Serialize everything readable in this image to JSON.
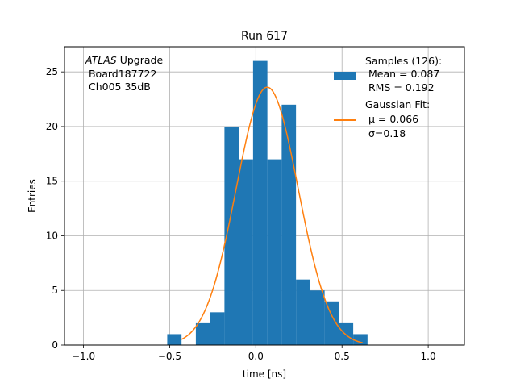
{
  "chart_data": {
    "type": "bar",
    "title": "Run 617",
    "xlabel": "time [ns]",
    "ylabel": "Entries",
    "xlim": [
      -1.11,
      1.21
    ],
    "ylim": [
      0,
      27.3
    ],
    "xticks": [
      -1.0,
      -0.5,
      0.0,
      0.5,
      1.0
    ],
    "xtick_labels": [
      "−1.0",
      "−0.5",
      "0.0",
      "0.5",
      "1.0"
    ],
    "yticks": [
      0,
      5,
      10,
      15,
      20,
      25
    ],
    "ytick_labels": [
      "0",
      "5",
      "10",
      "15",
      "20",
      "25"
    ],
    "grid": true,
    "legend_position": "top-right",
    "bar_color": "#1f77b4",
    "fit_color": "#ff7f0e",
    "annotation": {
      "italic": "ATLAS",
      "line1_rest": " Upgrade",
      "line2": " Board187722",
      "line3": " Ch005 35dB"
    },
    "legend": {
      "hist_lines": [
        "Samples (126):",
        " Mean = 0.087",
        " RMS = 0.192"
      ],
      "fit_title": "Gaussian Fit:",
      "fit_mu_label": " μ = 0.066",
      "fit_sigma_label": " σ=0.18"
    },
    "bins": [
      {
        "x0": -0.514,
        "x1": -0.431,
        "count": 1
      },
      {
        "x0": -0.431,
        "x1": -0.348,
        "count": 0
      },
      {
        "x0": -0.348,
        "x1": -0.265,
        "count": 2
      },
      {
        "x0": -0.265,
        "x1": -0.182,
        "count": 3
      },
      {
        "x0": -0.182,
        "x1": -0.099,
        "count": 20
      },
      {
        "x0": -0.099,
        "x1": -0.016,
        "count": 17
      },
      {
        "x0": -0.016,
        "x1": 0.067,
        "count": 26
      },
      {
        "x0": 0.067,
        "x1": 0.15,
        "count": 17
      },
      {
        "x0": 0.15,
        "x1": 0.233,
        "count": 22
      },
      {
        "x0": 0.233,
        "x1": 0.316,
        "count": 6
      },
      {
        "x0": 0.316,
        "x1": 0.399,
        "count": 5
      },
      {
        "x0": 0.399,
        "x1": 0.482,
        "count": 4
      },
      {
        "x0": 0.482,
        "x1": 0.565,
        "count": 2
      },
      {
        "x0": 0.565,
        "x1": 0.648,
        "count": 1
      }
    ],
    "fit": {
      "amplitude": 23.6,
      "mu": 0.066,
      "sigma": 0.18,
      "x_range": [
        -0.431,
        0.62
      ]
    }
  }
}
